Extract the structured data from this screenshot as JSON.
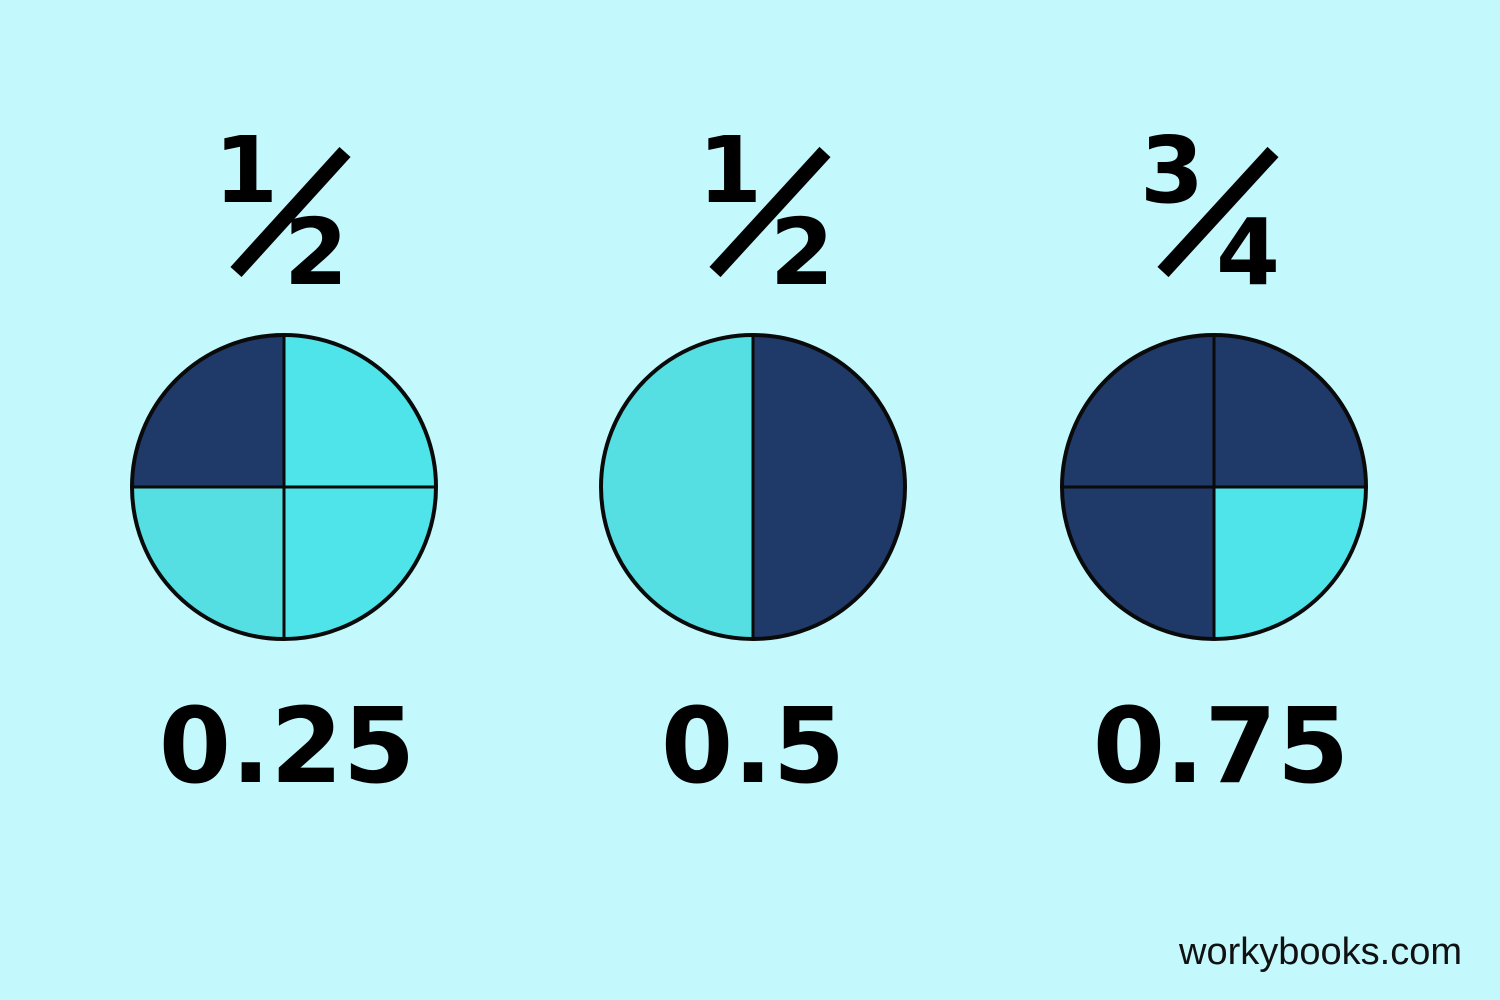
{
  "colors": {
    "background": "#c3f9fd",
    "shaded": "#1f3a68",
    "unshaded": "#4fe3ea",
    "outline": "#0a0a0a"
  },
  "fractions": [
    {
      "numerator": "1",
      "denominator": "4",
      "decimal": "0.25",
      "segments": 4,
      "shaded_parts": [
        "top-left"
      ]
    },
    {
      "numerator": "1",
      "denominator": "2",
      "decimal": "0.5",
      "segments": 2,
      "shaded_parts": [
        "right"
      ]
    },
    {
      "numerator": "3",
      "denominator": "4",
      "decimal": "0.75",
      "segments": 4,
      "shaded_parts": [
        "top-left",
        "top-right",
        "bottom-left"
      ]
    }
  ],
  "watermark": "workybooks.com"
}
